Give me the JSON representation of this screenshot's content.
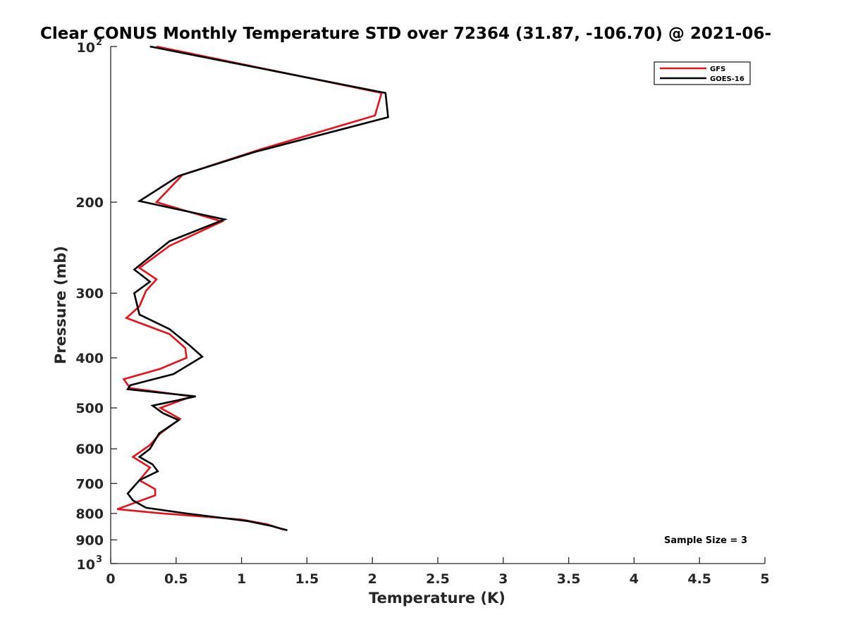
{
  "chart_data": {
    "type": "line",
    "title": "Clear CONUS Monthly Temperature STD over 72364 (31.87, -106.70) @ 2021-06-",
    "xlabel": "Temperature (K)",
    "ylabel": "Pressure (mb)",
    "xlim": [
      0,
      5
    ],
    "ylim": [
      100,
      1000
    ],
    "y_scale": "log",
    "y_reversed": true,
    "x_ticks": [
      "0",
      "0.5",
      "1",
      "1.5",
      "2",
      "2.5",
      "3",
      "3.5",
      "4",
      "4.5",
      "5"
    ],
    "x_tick_values": [
      0,
      0.5,
      1,
      1.5,
      2,
      2.5,
      3,
      3.5,
      4,
      4.5,
      5
    ],
    "y_ticks": [
      {
        "value": 100,
        "base": "10",
        "exp": "2"
      },
      {
        "value": 200,
        "label": "200"
      },
      {
        "value": 300,
        "label": "300"
      },
      {
        "value": 400,
        "label": "400"
      },
      {
        "value": 500,
        "label": "500"
      },
      {
        "value": 600,
        "label": "600"
      },
      {
        "value": 700,
        "label": "700"
      },
      {
        "value": 800,
        "label": "800"
      },
      {
        "value": 900,
        "label": "900"
      },
      {
        "value": 1000,
        "base": "10",
        "exp": "3"
      }
    ],
    "grid": false,
    "legend_position": "top-right",
    "series": [
      {
        "name": "GFS",
        "color": "#e8101a",
        "points": [
          [
            0.35,
            100
          ],
          [
            2.07,
            123
          ],
          [
            2.02,
            136
          ],
          [
            1.15,
            158
          ],
          [
            0.55,
            177
          ],
          [
            0.35,
            200
          ],
          [
            0.85,
            218
          ],
          [
            0.45,
            243
          ],
          [
            0.22,
            268
          ],
          [
            0.35,
            282
          ],
          [
            0.27,
            297
          ],
          [
            0.22,
            318
          ],
          [
            0.12,
            335
          ],
          [
            0.45,
            360
          ],
          [
            0.57,
            383
          ],
          [
            0.58,
            400
          ],
          [
            0.38,
            420
          ],
          [
            0.1,
            440
          ],
          [
            0.15,
            458
          ],
          [
            0.62,
            475
          ],
          [
            0.38,
            500
          ],
          [
            0.53,
            525
          ],
          [
            0.38,
            560
          ],
          [
            0.3,
            590
          ],
          [
            0.17,
            622
          ],
          [
            0.3,
            652
          ],
          [
            0.22,
            690
          ],
          [
            0.34,
            718
          ],
          [
            0.34,
            738
          ],
          [
            0.05,
            785
          ],
          [
            0.4,
            800
          ],
          [
            1.0,
            822
          ],
          [
            1.2,
            840
          ],
          [
            1.32,
            860
          ]
        ]
      },
      {
        "name": "GOES-16",
        "color": "#000000",
        "points": [
          [
            0.3,
            100
          ],
          [
            2.1,
            123
          ],
          [
            2.12,
            137
          ],
          [
            1.1,
            160
          ],
          [
            0.52,
            178
          ],
          [
            0.22,
            199
          ],
          [
            0.87,
            216
          ],
          [
            0.45,
            238
          ],
          [
            0.18,
            270
          ],
          [
            0.3,
            285
          ],
          [
            0.18,
            300
          ],
          [
            0.22,
            330
          ],
          [
            0.45,
            352
          ],
          [
            0.6,
            378
          ],
          [
            0.7,
            398
          ],
          [
            0.48,
            430
          ],
          [
            0.15,
            452
          ],
          [
            0.13,
            460
          ],
          [
            0.65,
            475
          ],
          [
            0.32,
            495
          ],
          [
            0.4,
            512
          ],
          [
            0.52,
            528
          ],
          [
            0.37,
            560
          ],
          [
            0.3,
            600
          ],
          [
            0.22,
            622
          ],
          [
            0.32,
            643
          ],
          [
            0.36,
            663
          ],
          [
            0.22,
            690
          ],
          [
            0.13,
            732
          ],
          [
            0.17,
            755
          ],
          [
            0.27,
            780
          ],
          [
            0.58,
            800
          ],
          [
            1.05,
            828
          ],
          [
            1.22,
            845
          ],
          [
            1.35,
            862
          ]
        ]
      }
    ],
    "annotation": "Sample Size = 3"
  }
}
